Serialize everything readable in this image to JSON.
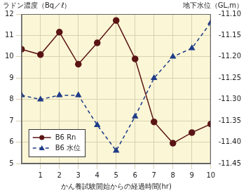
{
  "chart_data": {
    "type": "line",
    "y_label": "ラドン濃度（Bq／ℓ）",
    "y2_label": "地下水位（GL,m）",
    "x_label": "かん養試験開始からの経過時間(hr)",
    "x": [
      0,
      1,
      2,
      3,
      4,
      5,
      6,
      7,
      8,
      9,
      10
    ],
    "series": [
      {
        "name": "B6 Rn",
        "color": "#5a1414",
        "marker": "circle",
        "line_style": "solid",
        "values": [
          10.35,
          10.1,
          11.15,
          9.65,
          10.65,
          11.7,
          9.9,
          6.95,
          5.95,
          6.45,
          6.85
        ]
      },
      {
        "name": "B6 水位",
        "color": "#1f3c88",
        "marker": "triangle",
        "line_style": "dashed",
        "axis": "y2",
        "values": [
          -11.29,
          -11.3,
          -11.29,
          -11.29,
          -11.36,
          -11.42,
          -11.34,
          -11.25,
          -11.2,
          -11.18,
          -11.12
        ]
      }
    ],
    "xlim": [
      0,
      10
    ],
    "xticks": [
      1,
      2,
      3,
      4,
      5,
      6,
      7,
      8,
      9,
      10
    ],
    "ylim": [
      5,
      12
    ],
    "yticks": [
      5,
      6,
      7,
      8,
      9,
      10,
      11,
      12
    ],
    "y2lim": [
      -11.45,
      -11.1
    ],
    "y2ticks": [
      -11.45,
      {
        "value": -11.4,
        "label": "-11.40"
      },
      -11.35,
      {
        "value": -11.3,
        "label": "-11.30"
      },
      -11.25,
      {
        "value": -11.2,
        "label": "-11.20"
      },
      -11.15,
      {
        "value": -11.1,
        "label": "-11.10"
      }
    ],
    "grid": true,
    "legend": "lower left"
  }
}
